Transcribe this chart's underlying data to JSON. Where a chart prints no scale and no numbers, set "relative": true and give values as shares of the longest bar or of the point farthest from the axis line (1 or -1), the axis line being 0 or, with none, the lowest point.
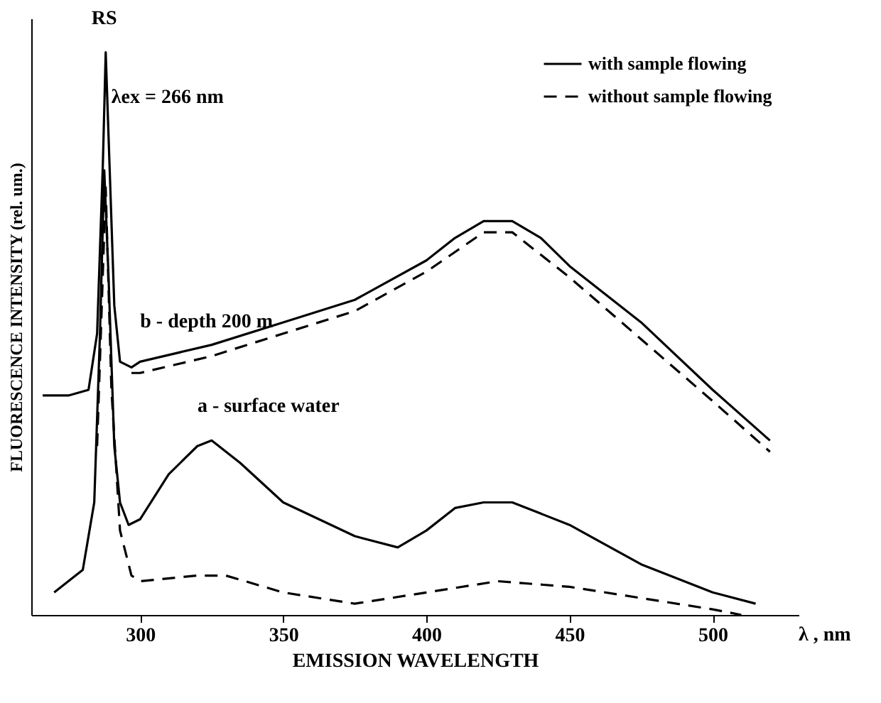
{
  "chart_data": {
    "type": "line",
    "relative": true,
    "xlabel": "EMISSION WAVELENGTH",
    "ylabel": "FLUORESCENCE INTENSITY (rel. um.)",
    "xlim": [
      262,
      530
    ],
    "xticks": [
      300,
      350,
      400,
      450,
      500
    ],
    "grid": false,
    "legend": "top right",
    "marker": "none",
    "annotations": [
      {
        "text": "RS",
        "x": 288,
        "y": 1.0
      },
      "λex = 266 nm",
      {
        "text": "b  -  depth 200 m",
        "x": 305,
        "y": 0.46
      },
      {
        "text": "a  -  surface water",
        "x": 325,
        "y": 0.31
      },
      "λ , nm"
    ],
    "series": [
      {
        "name": "with sample flowing",
        "color": "#000000",
        "line_style": "solid",
        "x": [
          266,
          275,
          282,
          285,
          287,
          288,
          289,
          291,
          293,
          297,
          300,
          325,
          350,
          375,
          400,
          410,
          420,
          430,
          440,
          450,
          475,
          500,
          520
        ],
        "values": [
          0.39,
          0.39,
          0.4,
          0.5,
          0.8,
          1.0,
          0.85,
          0.55,
          0.45,
          0.44,
          0.45,
          0.48,
          0.52,
          0.56,
          0.63,
          0.67,
          0.7,
          0.7,
          0.67,
          0.62,
          0.52,
          0.4,
          0.31
        ]
      },
      {
        "name": "without sample flowing",
        "color": "#000000",
        "line_style": "dashed",
        "x": [
          297,
          300,
          325,
          350,
          375,
          400,
          420,
          430,
          450,
          475,
          500,
          520
        ],
        "values": [
          0.43,
          0.43,
          0.46,
          0.5,
          0.54,
          0.61,
          0.68,
          0.68,
          0.6,
          0.49,
          0.38,
          0.29
        ]
      },
      {
        "color": "#000000",
        "line_style": "solid",
        "x": [
          270,
          280,
          284,
          286,
          287.5,
          289,
          291,
          293,
          296,
          300,
          310,
          320,
          325,
          335,
          350,
          375,
          390,
          400,
          410,
          420,
          430,
          440,
          450,
          475,
          500,
          515
        ],
        "values": [
          0.04,
          0.08,
          0.2,
          0.5,
          0.79,
          0.6,
          0.3,
          0.2,
          0.16,
          0.17,
          0.25,
          0.3,
          0.31,
          0.27,
          0.2,
          0.14,
          0.12,
          0.15,
          0.19,
          0.2,
          0.2,
          0.18,
          0.16,
          0.09,
          0.04,
          0.02
        ]
      },
      {
        "color": "#000000",
        "line_style": "dashed",
        "x": [
          285,
          288,
          290,
          293,
          297,
          300,
          320,
          330,
          350,
          375,
          400,
          425,
          450,
          475,
          500,
          510
        ],
        "values": [
          0.3,
          0.76,
          0.4,
          0.15,
          0.07,
          0.06,
          0.07,
          0.07,
          0.04,
          0.02,
          0.04,
          0.06,
          0.05,
          0.03,
          0.01,
          0.0
        ]
      }
    ]
  }
}
